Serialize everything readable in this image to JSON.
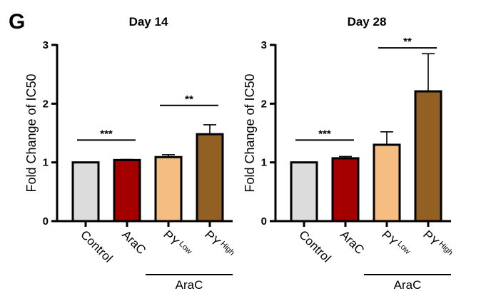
{
  "panel_label": "G",
  "chart_data": [
    {
      "type": "bar",
      "title": "Day 14",
      "xlabel": "",
      "ylabel": "Fold Change of IC50",
      "ylim": [
        0,
        3
      ],
      "yticks": [
        0,
        1,
        2,
        3
      ],
      "grid": false,
      "categories": [
        "Control",
        "AraC",
        "PY Low",
        "PY High"
      ],
      "category_labels": [
        {
          "main": "Control",
          "sup": ""
        },
        {
          "main": "AraC",
          "sup": ""
        },
        {
          "main": "PY",
          "sup": "Low"
        },
        {
          "main": "PY",
          "sup": "High"
        }
      ],
      "values": [
        1.0,
        1.04,
        1.09,
        1.48
      ],
      "errors": [
        0.0,
        0.01,
        0.04,
        0.16
      ],
      "colors": [
        "#dcdcdc",
        "#a50000",
        "#f5bd82",
        "#936024"
      ],
      "significance": [
        {
          "from": 0,
          "to": 1,
          "y": 1.38,
          "label": "***"
        },
        {
          "from": 2,
          "to": 3,
          "y": 1.97,
          "label": "**"
        }
      ],
      "group_bracket": {
        "from": 2,
        "to": 3,
        "label": "AraC"
      }
    },
    {
      "type": "bar",
      "title": "Day 28",
      "xlabel": "",
      "ylabel": "Fold Change of IC50",
      "ylim": [
        0,
        3
      ],
      "yticks": [
        0,
        1,
        2,
        3
      ],
      "grid": false,
      "categories": [
        "Control",
        "AraC",
        "PY Low",
        "PY High"
      ],
      "category_labels": [
        {
          "main": "Control",
          "sup": ""
        },
        {
          "main": "AraC",
          "sup": ""
        },
        {
          "main": "PY",
          "sup": "Low"
        },
        {
          "main": "PY",
          "sup": "High"
        }
      ],
      "values": [
        1.0,
        1.07,
        1.3,
        2.21
      ],
      "errors": [
        0.0,
        0.03,
        0.22,
        0.64
      ],
      "colors": [
        "#dcdcdc",
        "#a50000",
        "#f5bd82",
        "#936024"
      ],
      "significance": [
        {
          "from": 0,
          "to": 1,
          "y": 1.38,
          "label": "***"
        },
        {
          "from": 2,
          "to": 3,
          "y": 2.95,
          "label": "**"
        }
      ],
      "group_bracket": {
        "from": 2,
        "to": 3,
        "label": "AraC"
      }
    }
  ]
}
